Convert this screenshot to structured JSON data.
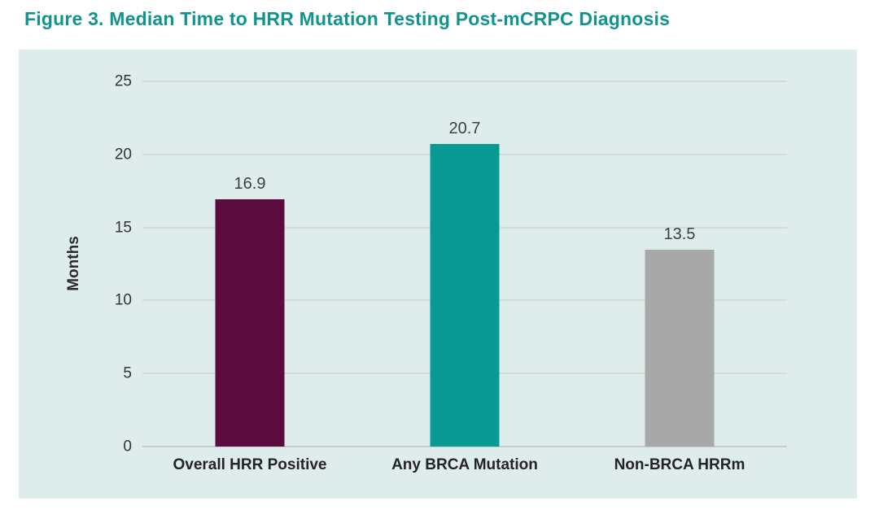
{
  "title": "Figure 3. Median Time to HRR Mutation Testing Post-mCRPC Diagnosis",
  "title_color": "#11948f",
  "panel_background": "#deedeb",
  "chart_data": {
    "type": "bar",
    "categories": [
      "Overall HRR Positive",
      "Any BRCA Mutation",
      "Non-BRCA HRRm"
    ],
    "values": [
      16.9,
      20.7,
      13.5
    ],
    "value_labels": [
      "16.9",
      "20.7",
      "13.5"
    ],
    "bar_colors": [
      "#5c0b3e",
      "#0a9a95",
      "#a8a8a8"
    ],
    "bar_names": [
      "overall-hrr-positive",
      "any-brca-mutation",
      "non-brca-hrrm"
    ],
    "title": "",
    "xlabel": "",
    "ylabel": "Months",
    "ylim": [
      0,
      25
    ],
    "yticks": [
      0,
      5,
      10,
      15,
      20,
      25
    ],
    "grid": "horizontal",
    "legend": "none"
  }
}
